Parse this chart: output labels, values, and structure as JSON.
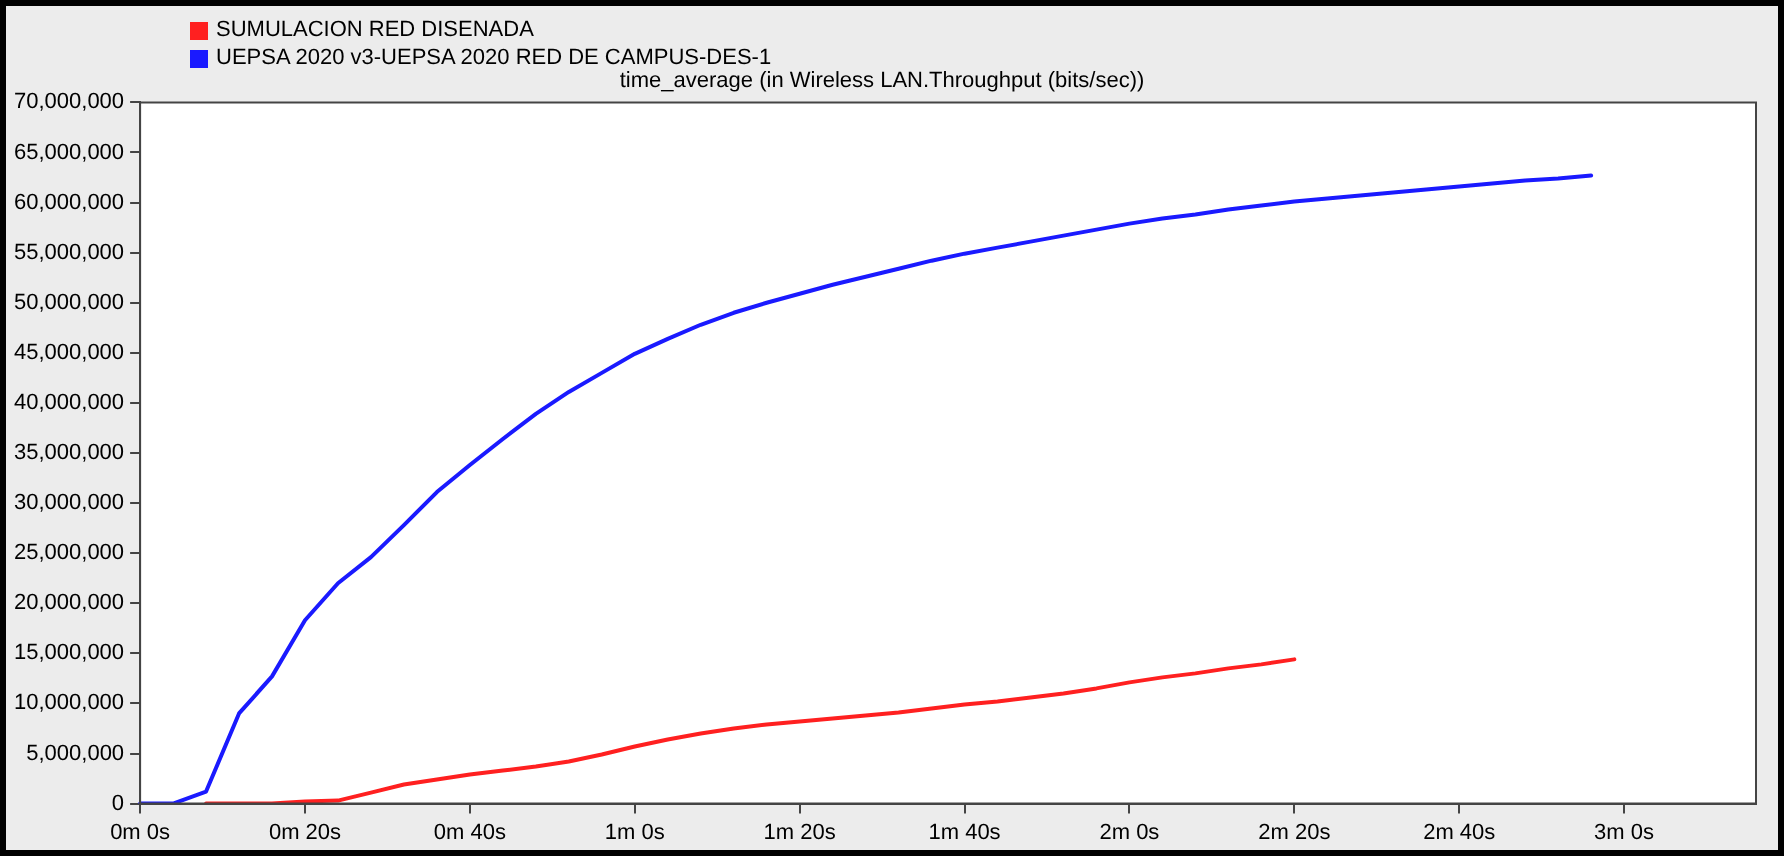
{
  "chart_data": {
    "type": "line",
    "title": "time_average (in Wireless LAN.Throughput (bits/sec))",
    "legend": "top left",
    "categories": [
      "0m 0s",
      null,
      null,
      null,
      null,
      "0m 20s",
      null,
      null,
      null,
      null,
      "0m 40s",
      null,
      null,
      null,
      null,
      "1m 0s",
      null,
      null,
      null,
      null,
      "1m 20s",
      null,
      null,
      null,
      null,
      "1m 40s",
      null,
      null,
      null,
      null,
      "2m 0s",
      null,
      null,
      null,
      null,
      "2m 20s",
      null,
      null,
      null,
      null,
      "2m 40s",
      null,
      null,
      null,
      null,
      "3m 0s",
      null,
      null,
      null,
      null
    ],
    "ylim": [
      0,
      70000000
    ],
    "yticks": [
      0,
      {
        "value": 5000000,
        "label": "5,000,000"
      },
      {
        "value": 10000000,
        "label": "10,000,000"
      },
      {
        "value": 15000000,
        "label": "15,000,000"
      },
      {
        "value": 20000000,
        "label": "20,000,000"
      },
      {
        "value": 25000000,
        "label": "25,000,000"
      },
      {
        "value": 30000000,
        "label": "30,000,000"
      },
      {
        "value": 35000000,
        "label": "35,000,000"
      },
      {
        "value": 40000000,
        "label": "40,000,000"
      },
      {
        "value": 45000000,
        "label": "45,000,000"
      },
      {
        "value": 50000000,
        "label": "50,000,000"
      },
      {
        "value": 55000000,
        "label": "55,000,000"
      },
      {
        "value": 60000000,
        "label": "60,000,000"
      },
      {
        "value": 65000000,
        "label": "65,000,000"
      },
      {
        "value": 70000000,
        "label": "70,000,000"
      }
    ],
    "series": [
      {
        "name": "SUMULACION RED DISENADA",
        "color": "#ff2020",
        "values": [
          null,
          null,
          0,
          0,
          0,
          200000,
          300000,
          1100000,
          1900000,
          2400000,
          2900000,
          3300000,
          3700000,
          4200000,
          4900000,
          5700000,
          6400000,
          7000000,
          7500000,
          7900000,
          8200000,
          8500000,
          8800000,
          9100000,
          9500000,
          9900000,
          10200000,
          10600000,
          11000000,
          11500000,
          12100000,
          12600000,
          13000000,
          13500000,
          13900000,
          14400000,
          null,
          null,
          null,
          null,
          null,
          null,
          null,
          null,
          null,
          null,
          null,
          null,
          null,
          null
        ]
      },
      {
        "name": "UEPSA 2020 v3-UEPSA 2020 RED DE CAMPUS-DES-1",
        "color": "#1a1aff",
        "values": [
          0,
          0,
          1200000,
          9000000,
          12700000,
          18300000,
          22000000,
          24600000,
          27800000,
          31100000,
          33800000,
          36400000,
          38900000,
          41100000,
          43000000,
          44900000,
          46400000,
          47800000,
          49000000,
          50000000,
          50900000,
          51800000,
          52600000,
          53400000,
          54200000,
          54900000,
          55500000,
          56100000,
          56700000,
          57300000,
          57900000,
          58400000,
          58800000,
          59300000,
          59700000,
          60100000,
          60400000,
          60700000,
          61000000,
          61300000,
          61600000,
          61900000,
          62200000,
          62400000,
          62700000,
          null,
          null,
          null,
          null,
          null
        ]
      }
    ]
  }
}
